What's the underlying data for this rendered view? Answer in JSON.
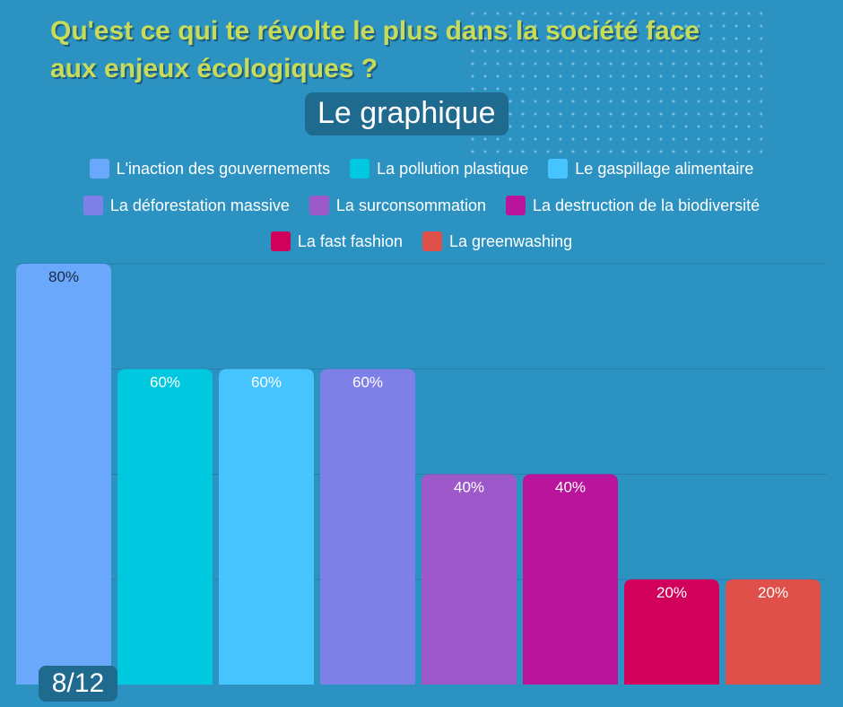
{
  "title_line1": "Qu'est ce qui te révolte le plus dans la société face",
  "title_line2": "aux enjeux écologiques ?",
  "subtitle": "Le graphique",
  "page_indicator": "8/12",
  "chart_data": {
    "type": "bar",
    "categories": [
      "L'inaction des gouvernements",
      "La pollution plastique",
      "Le gaspillage alimentaire",
      "La déforestation massive",
      "La surconsommation",
      "La destruction de la biodiversité",
      "La fast fashion",
      "La greenwashing"
    ],
    "values": [
      80,
      60,
      60,
      60,
      40,
      40,
      20,
      20
    ],
    "value_labels": [
      "80%",
      "60%",
      "60%",
      "60%",
      "40%",
      "40%",
      "20%",
      "20%"
    ],
    "colors": [
      "#6aa8fb",
      "#00c8de",
      "#45c4fd",
      "#7e80e8",
      "#9d58c9",
      "#bb149c",
      "#d1005a",
      "#e0504a"
    ],
    "ylim": [
      0,
      80
    ],
    "grid": true,
    "legend_position": "top"
  }
}
